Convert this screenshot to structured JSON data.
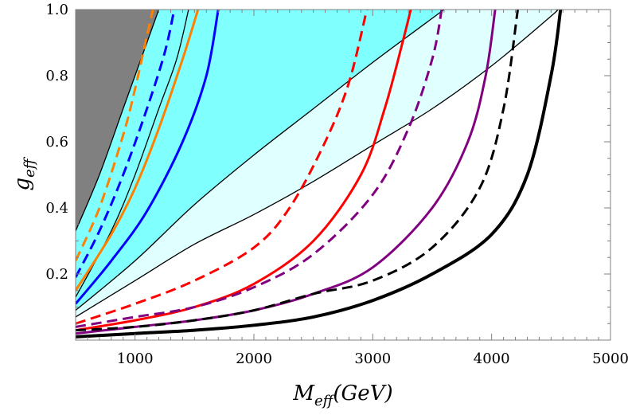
{
  "chart_data": {
    "type": "line",
    "xlabel": "M",
    "xlabel_subscript": "eff",
    "xlabel_unit": "(GeV)",
    "ylabel": "g",
    "ylabel_subscript": "eff",
    "xlim": [
      500,
      5000
    ],
    "ylim": [
      0,
      1.0
    ],
    "x_ticks": [
      1000,
      2000,
      3000,
      4000,
      5000
    ],
    "x_tick_labels": [
      "1000",
      "2000",
      "3000",
      "4000",
      "5000"
    ],
    "y_ticks": [
      0.2,
      0.4,
      0.6,
      0.8,
      1.0
    ],
    "y_tick_labels": [
      "0.2",
      "0.4",
      "0.6",
      "0.8",
      "1.0"
    ],
    "grid": false,
    "regions": [
      {
        "color": "#808080",
        "boundary": [
          [
            500,
            0.33
          ],
          [
            700,
            0.5
          ],
          [
            900,
            0.7
          ],
          [
            1100,
            0.9
          ],
          [
            1200,
            1.0
          ]
        ]
      },
      {
        "color": "#80ffff",
        "boundary": [
          [
            500,
            0.09
          ],
          [
            1000,
            0.24
          ],
          [
            1500,
            0.41
          ],
          [
            2000,
            0.56
          ],
          [
            2500,
            0.7
          ],
          [
            3000,
            0.84
          ],
          [
            3600,
            1.0
          ]
        ]
      },
      {
        "color": "#e0ffff",
        "boundary": [
          [
            500,
            0.07
          ],
          [
            1000,
            0.18
          ],
          [
            1500,
            0.29
          ],
          [
            2000,
            0.38
          ],
          [
            2500,
            0.48
          ],
          [
            3000,
            0.59
          ],
          [
            3500,
            0.7
          ],
          [
            4000,
            0.83
          ],
          [
            4500,
            0.98
          ],
          [
            4550,
            1.0
          ]
        ]
      }
    ],
    "black_boundaries": [
      [
        [
          500,
          0.07
        ],
        [
          1000,
          0.18
        ],
        [
          1500,
          0.29
        ],
        [
          2000,
          0.38
        ],
        [
          2500,
          0.48
        ],
        [
          3000,
          0.59
        ],
        [
          3500,
          0.7
        ],
        [
          4000,
          0.83
        ],
        [
          4500,
          0.98
        ],
        [
          4550,
          1.0
        ]
      ],
      [
        [
          500,
          0.09
        ],
        [
          1000,
          0.24
        ],
        [
          1500,
          0.41
        ],
        [
          2000,
          0.56
        ],
        [
          2500,
          0.7
        ],
        [
          3000,
          0.84
        ],
        [
          3600,
          1.0
        ]
      ],
      [
        [
          500,
          0.13
        ],
        [
          800,
          0.33
        ],
        [
          1000,
          0.5
        ],
        [
          1200,
          0.7
        ],
        [
          1350,
          0.85
        ],
        [
          1450,
          1.0
        ]
      ],
      [
        [
          500,
          0.33
        ],
        [
          700,
          0.5
        ],
        [
          900,
          0.7
        ],
        [
          1100,
          0.9
        ],
        [
          1200,
          1.0
        ]
      ]
    ],
    "series": [
      {
        "color": "#ff8000",
        "style": "dashed",
        "width": 3,
        "points": [
          [
            500,
            0.24
          ],
          [
            700,
            0.4
          ],
          [
            900,
            0.62
          ],
          [
            1000,
            0.76
          ],
          [
            1100,
            0.92
          ],
          [
            1150,
            1.0
          ]
        ]
      },
      {
        "color": "#0000ff",
        "style": "dashed",
        "width": 3,
        "points": [
          [
            500,
            0.19
          ],
          [
            700,
            0.33
          ],
          [
            900,
            0.5
          ],
          [
            1100,
            0.7
          ],
          [
            1250,
            0.87
          ],
          [
            1330,
            1.0
          ]
        ]
      },
      {
        "color": "#ff8000",
        "style": "solid",
        "width": 3,
        "points": [
          [
            500,
            0.15
          ],
          [
            800,
            0.32
          ],
          [
            1000,
            0.46
          ],
          [
            1200,
            0.64
          ],
          [
            1400,
            0.85
          ],
          [
            1530,
            1.0
          ]
        ]
      },
      {
        "color": "#0000ff",
        "style": "solid",
        "width": 3,
        "points": [
          [
            500,
            0.11
          ],
          [
            800,
            0.24
          ],
          [
            1100,
            0.39
          ],
          [
            1400,
            0.6
          ],
          [
            1600,
            0.8
          ],
          [
            1700,
            1.0
          ]
        ]
      },
      {
        "color": "#ff0000",
        "style": "dashed",
        "width": 3,
        "points": [
          [
            500,
            0.05
          ],
          [
            1000,
            0.11
          ],
          [
            1500,
            0.18
          ],
          [
            2000,
            0.28
          ],
          [
            2300,
            0.4
          ],
          [
            2600,
            0.6
          ],
          [
            2800,
            0.78
          ],
          [
            2950,
            1.0
          ]
        ]
      },
      {
        "color": "#ff0000",
        "style": "solid",
        "width": 3,
        "points": [
          [
            500,
            0.03
          ],
          [
            1000,
            0.06
          ],
          [
            1500,
            0.1
          ],
          [
            2000,
            0.17
          ],
          [
            2500,
            0.3
          ],
          [
            2900,
            0.5
          ],
          [
            3100,
            0.7
          ],
          [
            3250,
            0.9
          ],
          [
            3320,
            1.0
          ]
        ]
      },
      {
        "color": "#800080",
        "style": "dashed",
        "width": 3,
        "points": [
          [
            500,
            0.04
          ],
          [
            1000,
            0.07
          ],
          [
            1500,
            0.1
          ],
          [
            2000,
            0.16
          ],
          [
            2500,
            0.26
          ],
          [
            3000,
            0.44
          ],
          [
            3300,
            0.64
          ],
          [
            3500,
            0.85
          ],
          [
            3580,
            1.0
          ]
        ]
      },
      {
        "color": "#800080",
        "style": "solid",
        "width": 3,
        "points": [
          [
            500,
            0.02
          ],
          [
            1000,
            0.04
          ],
          [
            1500,
            0.06
          ],
          [
            2000,
            0.09
          ],
          [
            2500,
            0.14
          ],
          [
            3000,
            0.22
          ],
          [
            3500,
            0.4
          ],
          [
            3800,
            0.6
          ],
          [
            3950,
            0.8
          ],
          [
            4030,
            1.0
          ]
        ]
      },
      {
        "color": "#000000",
        "style": "dashed",
        "width": 3,
        "points": [
          [
            500,
            0.03
          ],
          [
            1000,
            0.04
          ],
          [
            1500,
            0.06
          ],
          [
            2000,
            0.09
          ],
          [
            2500,
            0.14
          ],
          [
            3000,
            0.18
          ],
          [
            3500,
            0.28
          ],
          [
            3900,
            0.46
          ],
          [
            4100,
            0.7
          ],
          [
            4220,
            1.0
          ]
        ]
      },
      {
        "color": "#000000",
        "style": "solid",
        "width": 4,
        "points": [
          [
            500,
            0.01
          ],
          [
            1000,
            0.02
          ],
          [
            1500,
            0.03
          ],
          [
            2000,
            0.045
          ],
          [
            2500,
            0.07
          ],
          [
            3000,
            0.12
          ],
          [
            3500,
            0.2
          ],
          [
            4000,
            0.32
          ],
          [
            4300,
            0.5
          ],
          [
            4500,
            0.8
          ],
          [
            4580,
            1.0
          ]
        ]
      }
    ]
  }
}
